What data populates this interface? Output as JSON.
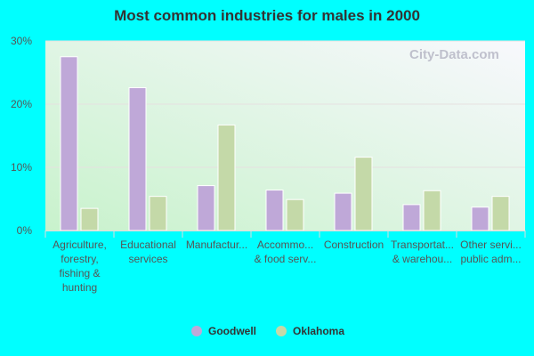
{
  "chart_data": {
    "type": "bar",
    "title": "Most common industries for males in 2000",
    "categories": [
      [
        "Agriculture,",
        "forestry,",
        "fishing &",
        "hunting"
      ],
      [
        "Educational",
        "services"
      ],
      [
        "Manufactur..."
      ],
      [
        "Accommo...",
        "& food serv..."
      ],
      [
        "Construction"
      ],
      [
        "Transportat...",
        "& warehou..."
      ],
      [
        "Other servi...",
        "public adm..."
      ]
    ],
    "series": [
      {
        "name": "Goodwell",
        "color": "#bfa8d8",
        "values": [
          27.5,
          22.6,
          7.1,
          6.4,
          5.9,
          4.1,
          3.7
        ]
      },
      {
        "name": "Oklahoma",
        "color": "#c4d9a8",
        "values": [
          3.5,
          5.4,
          16.7,
          4.9,
          11.6,
          6.3,
          5.4
        ]
      }
    ],
    "yticks": [
      "0%",
      "10%",
      "20%",
      "30%"
    ],
    "ylim": [
      0,
      30
    ],
    "grid": true,
    "legend": "bottom",
    "watermark": "City-Data.com"
  }
}
